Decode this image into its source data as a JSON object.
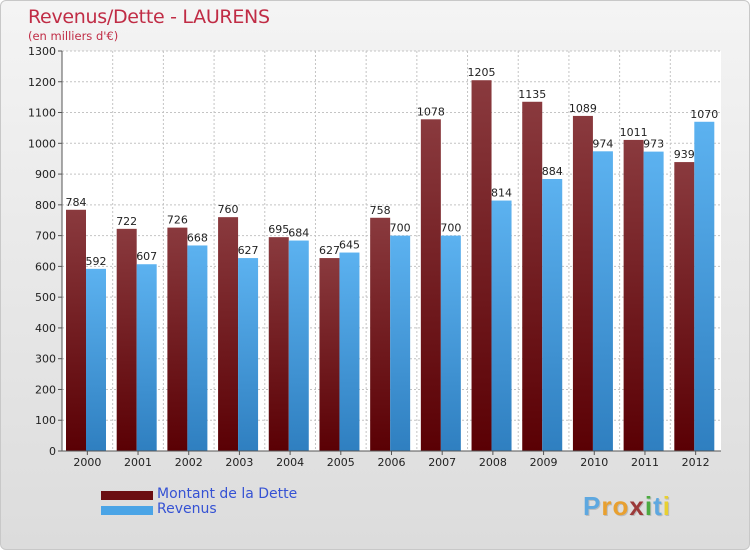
{
  "header": {
    "title": "Revenus/Dette - LAURENS",
    "subtitle": "(en milliers d'€)"
  },
  "legend": {
    "items": [
      {
        "label": "Montant de la Dette",
        "color": "#6b0e12"
      },
      {
        "label": "Revenus",
        "color": "#4aa4e6"
      }
    ]
  },
  "brand": {
    "letters": [
      "P",
      "r",
      "o",
      "x",
      "i",
      "t",
      "i"
    ],
    "colors": [
      "#5ea8e0",
      "#e8a030",
      "#e8a030",
      "#9c3a3a",
      "#4caa40",
      "#5ea8e0",
      "#e8d030"
    ]
  },
  "chart_data": {
    "type": "bar",
    "title": "Revenus/Dette - LAURENS",
    "subtitle": "(en milliers d'€)",
    "categories": [
      "2000",
      "2001",
      "2002",
      "2003",
      "2004",
      "2005",
      "2006",
      "2007",
      "2008",
      "2009",
      "2010",
      "2011",
      "2012"
    ],
    "series": [
      {
        "name": "Montant de la Dette",
        "color": "#6b0e12",
        "values": [
          784,
          722,
          726,
          760,
          695,
          627,
          758,
          1078,
          1205,
          1135,
          1089,
          1011,
          939
        ]
      },
      {
        "name": "Revenus",
        "color": "#4aa4e6",
        "values": [
          592,
          607,
          668,
          627,
          684,
          645,
          700,
          700,
          814,
          884,
          974,
          973,
          1070
        ]
      }
    ],
    "ylim": [
      0,
      1300
    ],
    "yticks": [
      0,
      100,
      200,
      300,
      400,
      500,
      600,
      700,
      800,
      900,
      1000,
      1100,
      1200,
      1300
    ],
    "grid": true,
    "legend_position": "bottom-left"
  }
}
